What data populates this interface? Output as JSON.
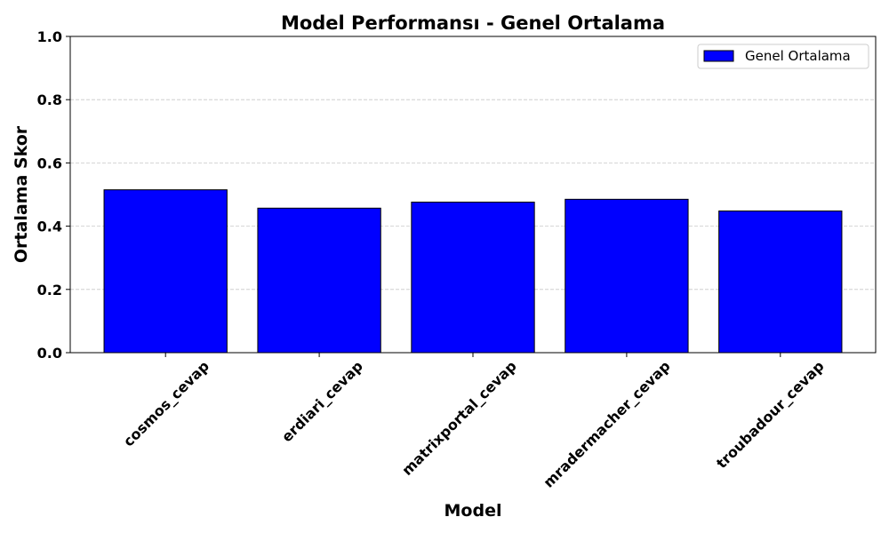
{
  "chart_data": {
    "type": "bar",
    "title": "Model Performansı - Genel Ortalama",
    "xlabel": "Model",
    "ylabel": "Ortalama Skor",
    "categories": [
      "cosmos_cevap",
      "erdiari_cevap",
      "matrixportal_cevap",
      "mradermacher_cevap",
      "troubadour_cevap"
    ],
    "series": [
      {
        "name": "Genel Ortalama",
        "values": [
          0.515,
          0.457,
          0.476,
          0.485,
          0.448
        ],
        "color": "#0000ff"
      }
    ],
    "ylim": [
      0,
      1.0
    ],
    "yticks": [
      "0.0",
      "0.2",
      "0.4",
      "0.6",
      "0.8",
      "1.0"
    ],
    "grid": "y-dashed",
    "legend_position": "top-right",
    "bar_edge_color": "#000000",
    "grid_color": "#c8c8c8"
  }
}
